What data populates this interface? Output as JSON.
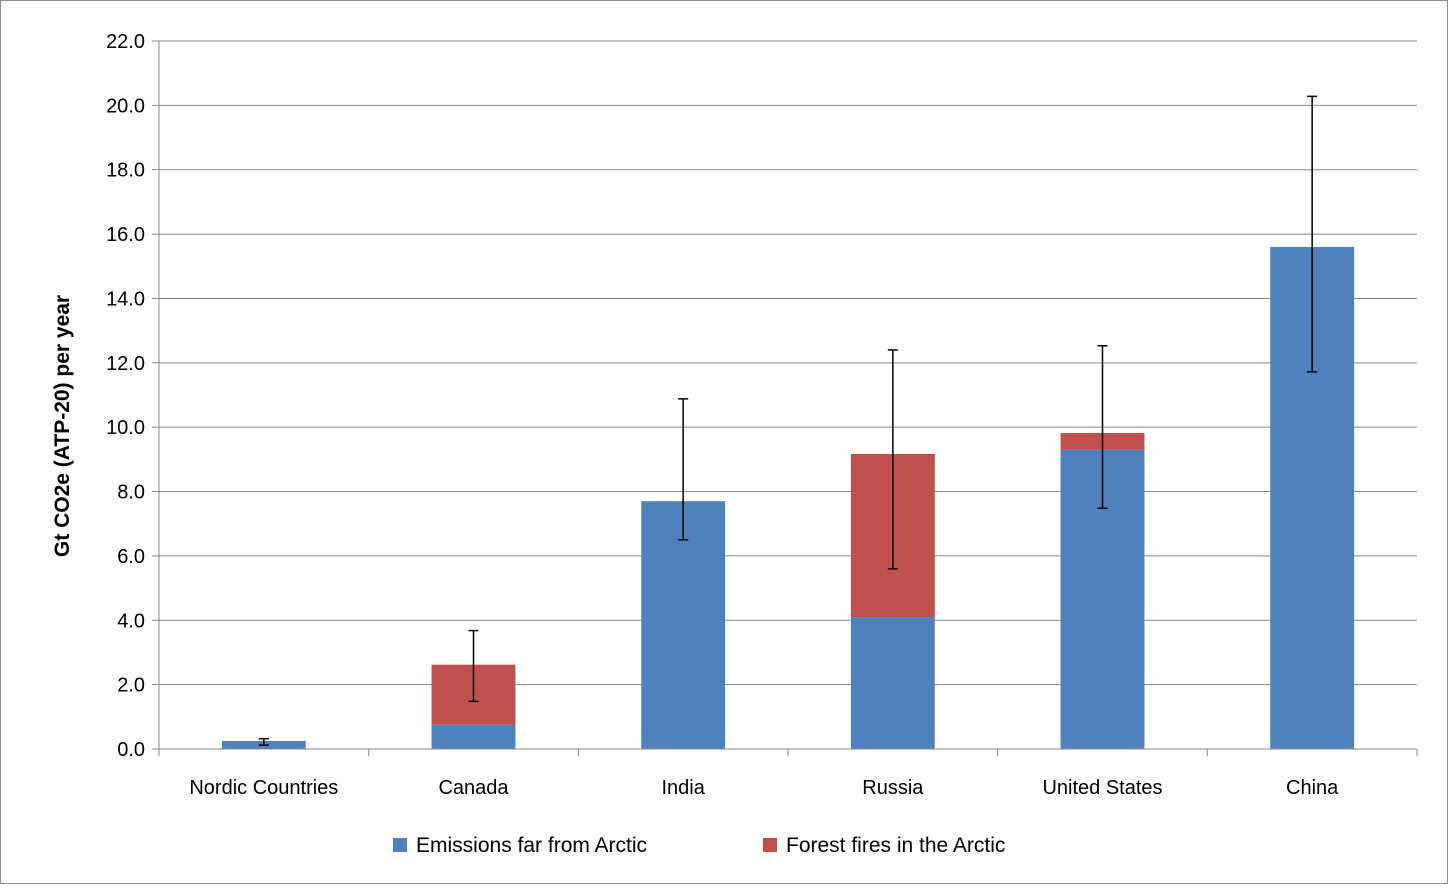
{
  "chart_data": {
    "type": "bar",
    "stacked": true,
    "categories": [
      "Nordic Countries",
      "Canada",
      "India",
      "Russia",
      "United States",
      "China"
    ],
    "series": [
      {
        "name": "Emissions far from Arctic",
        "color": "#4f81bd",
        "values": [
          0.25,
          0.75,
          7.7,
          4.1,
          9.3,
          15.6
        ]
      },
      {
        "name": "Forest fires in the Arctic",
        "color": "#c0504d",
        "values": [
          0.0,
          1.87,
          0.0,
          5.07,
          0.52,
          0.0
        ]
      }
    ],
    "error_bars": [
      {
        "low": 0.12,
        "high": 0.32
      },
      {
        "low": 1.48,
        "high": 3.68
      },
      {
        "low": 6.5,
        "high": 10.88
      },
      {
        "low": 5.6,
        "high": 12.4
      },
      {
        "low": 7.48,
        "high": 12.53
      },
      {
        "low": 11.72,
        "high": 20.28
      }
    ],
    "ylabel": "Gt CO2e (ATP-20) per year",
    "ylim": [
      0,
      22
    ],
    "ytick_step": 2,
    "ytick_labels": [
      "0.0",
      "2.0",
      "4.0",
      "6.0",
      "8.0",
      "10.0",
      "12.0",
      "14.0",
      "16.0",
      "18.0",
      "20.0",
      "22.0"
    ],
    "grid": true,
    "legend_position": "bottom"
  }
}
